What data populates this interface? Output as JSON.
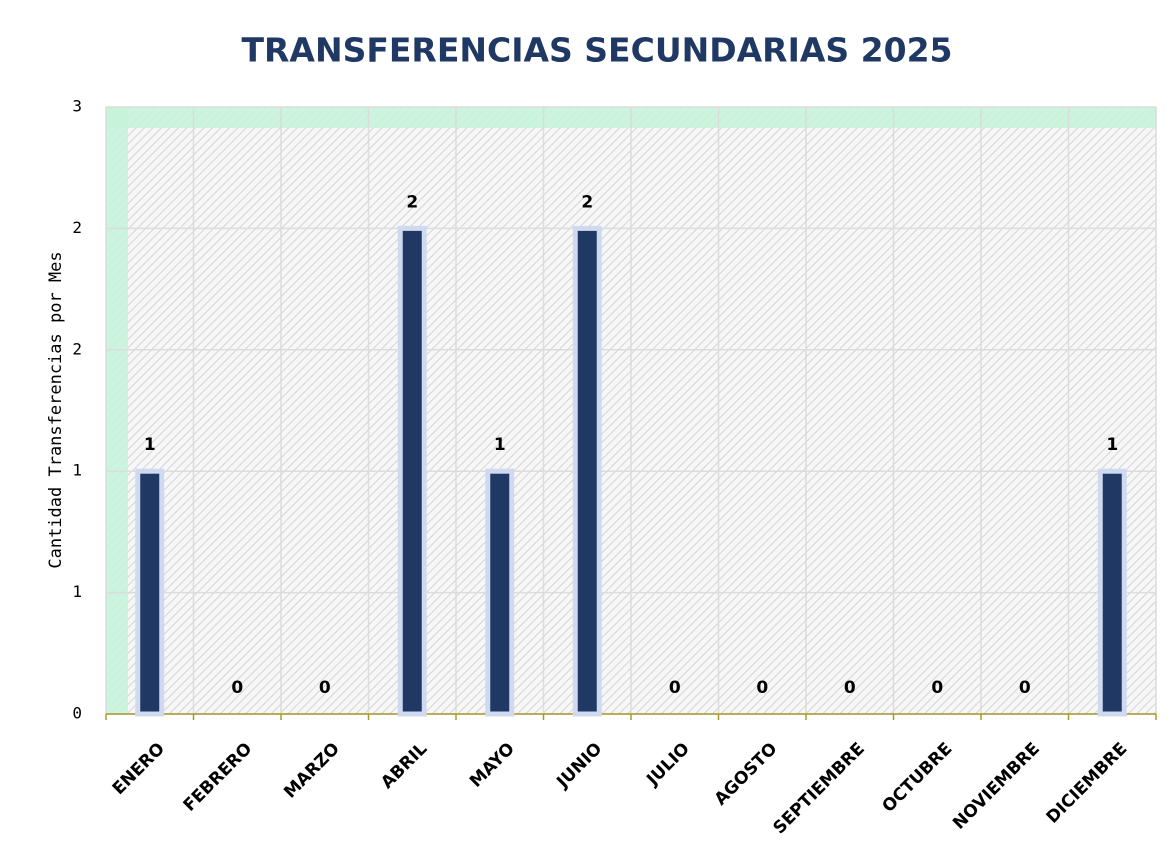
{
  "chart_data": {
    "type": "bar",
    "title": "TRANSFERENCIAS SECUNDARIAS 2025",
    "y_label": "Cantidad Transferencias por Mes",
    "categories": [
      "ENERO",
      "FEBRERO",
      "MARZO",
      "ABRIL",
      "MAYO",
      "JUNIO",
      "JULIO",
      "AGOSTO",
      "SEPTIEMBRE",
      "OCTUBRE",
      "NOVIEMBRE",
      "DICIEMBRE"
    ],
    "values": [
      1,
      0,
      0,
      2,
      1,
      2,
      0,
      0,
      0,
      0,
      0,
      1
    ],
    "color": "#1f3864",
    "ylim": [
      0,
      2.5
    ],
    "yticks": [
      0,
      {
        "value": 0.5,
        "label": "1"
      },
      1,
      {
        "value": 1.5,
        "label": "2"
      },
      2,
      {
        "value": 2.5,
        "label": "3"
      }
    ],
    "grid": true
  }
}
